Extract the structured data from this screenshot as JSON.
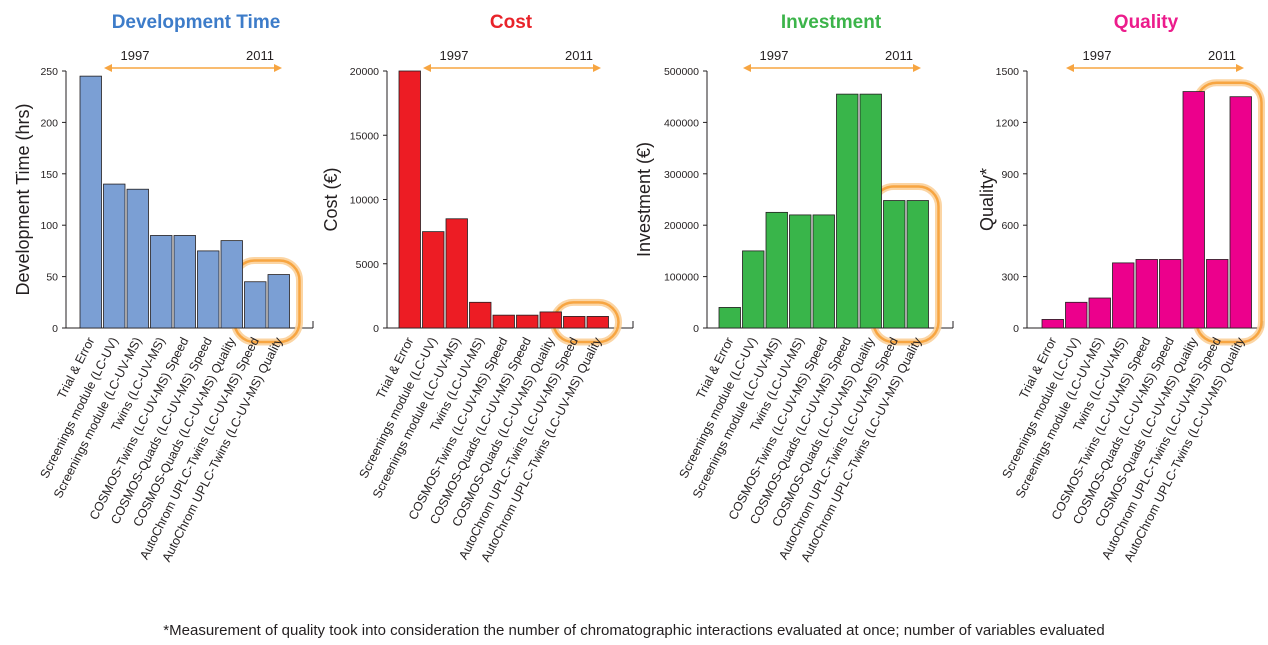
{
  "footnote": "*Measurement of quality took into consideration the number of chromatographic interactions evaluated at once; number of variables evaluated",
  "categories": [
    "Trial & Error",
    "Screenings module (LC-UV)",
    "Screenings module (LC-UV-MS)",
    "Twins (LC-UV-MS)",
    "COSMOS-Twins (LC-UV-MS) Speed",
    "COSMOS-Quads (LC-UV-MS) Speed",
    "COSMOS-Quads (LC-UV-MS) Quality",
    "AutoChrom UPLC-Twins (LC-UV-MS) Speed",
    "AutoChrom UPLC-Twins (LC-UV-MS) Quality"
  ],
  "chart_data": [
    {
      "type": "bar",
      "title": "Development Time",
      "title_color": "#3d7cc9",
      "bar_color": "#7b9fd4",
      "ylabel": "Development Time (hrs)",
      "ylim": [
        0,
        250
      ],
      "yticks": [
        "0",
        "50",
        "100",
        "150",
        "200",
        "250"
      ],
      "values": [
        245,
        140,
        135,
        90,
        90,
        75,
        85,
        45,
        52
      ],
      "timeline": {
        "start_label": "1997",
        "end_label": "2011"
      },
      "highlight": [
        7,
        8
      ]
    },
    {
      "type": "bar",
      "title": "Cost",
      "title_color": "#e8232a",
      "bar_color": "#ed1c24",
      "ylabel": "Cost (€)",
      "ylim": [
        0,
        20000
      ],
      "yticks": [
        "0",
        "5000",
        "10000",
        "15000",
        "20000"
      ],
      "values": [
        20000,
        7500,
        8500,
        2000,
        1000,
        1000,
        1250,
        900,
        900
      ],
      "timeline": {
        "start_label": "1997",
        "end_label": "2011"
      },
      "highlight": [
        7,
        8
      ]
    },
    {
      "type": "bar",
      "title": "Investment",
      "title_color": "#3cb44a",
      "bar_color": "#39b54a",
      "ylabel": "Investment (€)",
      "ylim": [
        0,
        500000
      ],
      "yticks": [
        "0",
        "100000",
        "200000",
        "300000",
        "400000",
        "500000"
      ],
      "values": [
        40000,
        150000,
        225000,
        220000,
        220000,
        455000,
        455000,
        248000,
        248000
      ],
      "timeline": {
        "start_label": "1997",
        "end_label": "2011"
      },
      "highlight": [
        7,
        8
      ]
    },
    {
      "type": "bar",
      "title": "Quality",
      "title_color": "#ec1c8c",
      "bar_color": "#ec008c",
      "ylabel": "Quality*",
      "ylim": [
        0,
        1500
      ],
      "yticks": [
        "0",
        "300",
        "600",
        "900",
        "1200",
        "1500"
      ],
      "values": [
        50,
        150,
        175,
        380,
        400,
        400,
        1380,
        400,
        1350
      ],
      "timeline": {
        "start_label": "1997",
        "end_label": "2011"
      },
      "highlight": [
        7,
        8
      ]
    }
  ]
}
